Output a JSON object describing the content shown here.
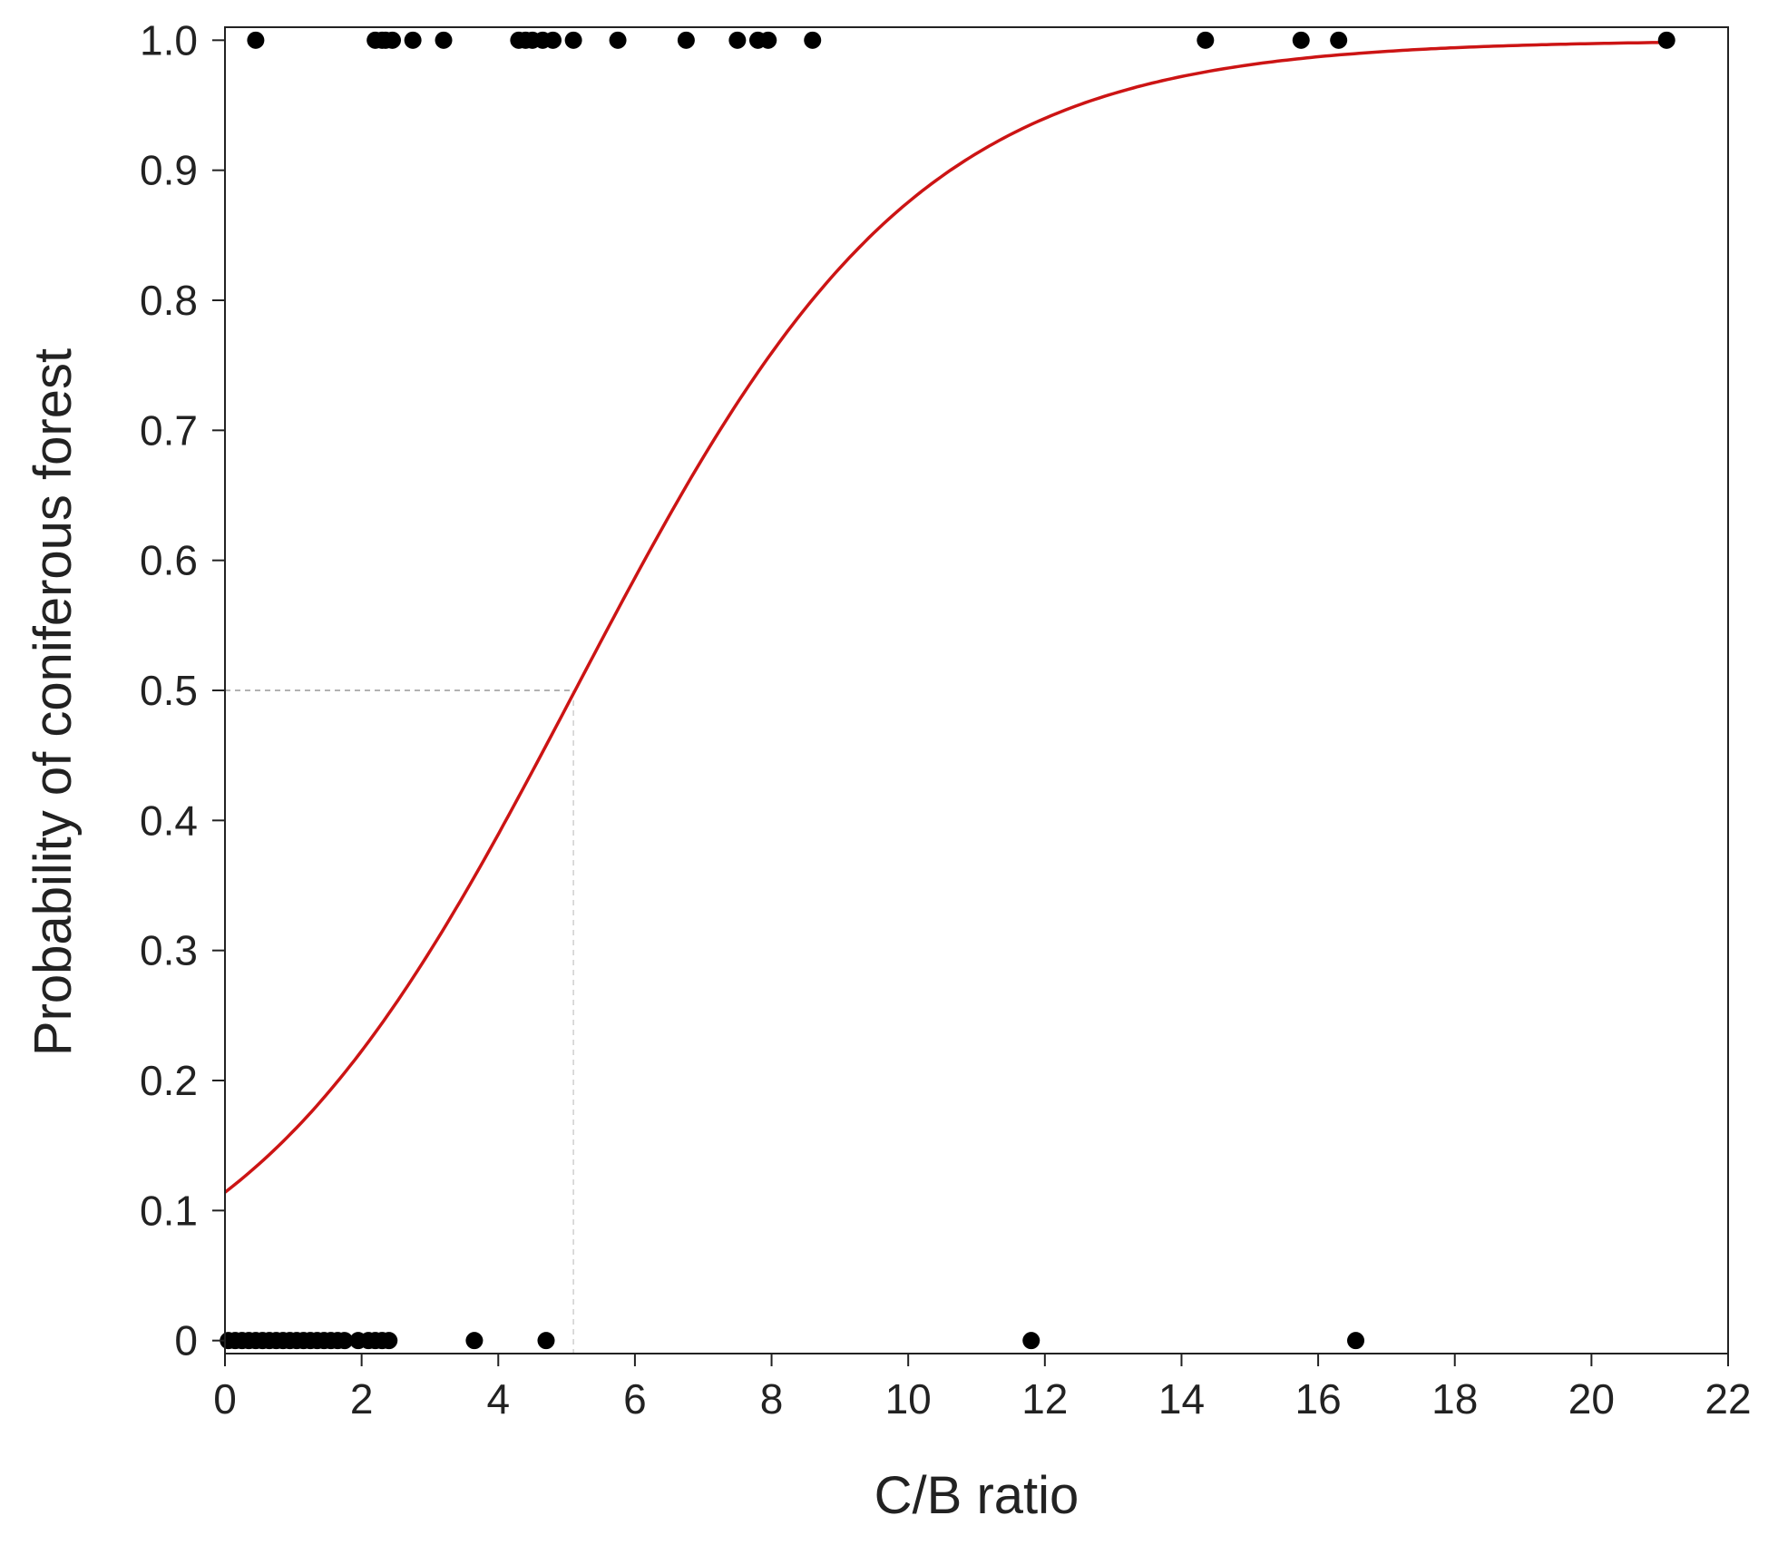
{
  "chart_data": {
    "type": "scatter",
    "title": "",
    "xlabel": "C/B ratio",
    "ylabel": "Probability  of  coniferous  forest",
    "xlim": [
      0,
      22
    ],
    "ylim": [
      -0.01,
      1.01
    ],
    "x_ticks": [
      0,
      2,
      4,
      6,
      8,
      10,
      12,
      14,
      16,
      18,
      20,
      22
    ],
    "x_tick_labels": [
      "0",
      "2",
      "4",
      "6",
      "8",
      "10",
      "12",
      "14",
      "16",
      "18",
      "20",
      "22"
    ],
    "y_ticks": [
      0,
      0.1,
      0.2,
      0.3,
      0.4,
      0.5,
      0.6,
      0.7,
      0.8,
      0.9,
      1.0
    ],
    "y_tick_labels": [
      "0",
      "0.1",
      "0.2",
      "0.3",
      "0.4",
      "0.5",
      "0.6",
      "0.7",
      "0.8",
      "0.9",
      "1.0"
    ],
    "grid": false,
    "colors": {
      "points": "#000000",
      "curve": "#cc1414",
      "reference": "#999999",
      "axis": "#222222"
    },
    "points": {
      "y1": [
        0.45,
        2.2,
        2.3,
        2.35,
        2.45,
        2.75,
        3.2,
        4.3,
        4.4,
        4.5,
        4.65,
        4.8,
        5.1,
        5.75,
        6.75,
        7.5,
        7.8,
        7.95,
        8.6,
        14.35,
        15.75,
        16.3,
        21.1
      ],
      "y0": [
        0.05,
        0.15,
        0.25,
        0.35,
        0.45,
        0.55,
        0.65,
        0.75,
        0.85,
        0.95,
        1.05,
        1.15,
        1.25,
        1.35,
        1.45,
        1.55,
        1.65,
        1.75,
        1.95,
        2.1,
        2.2,
        2.3,
        2.4,
        3.65,
        4.7,
        11.8,
        16.55
      ]
    },
    "fit_curve": {
      "model": "logistic",
      "intercept": -2.05,
      "slope": 0.4,
      "x_range": [
        0,
        21.1
      ]
    },
    "reference": {
      "x": 5.1,
      "y": 0.5
    }
  }
}
